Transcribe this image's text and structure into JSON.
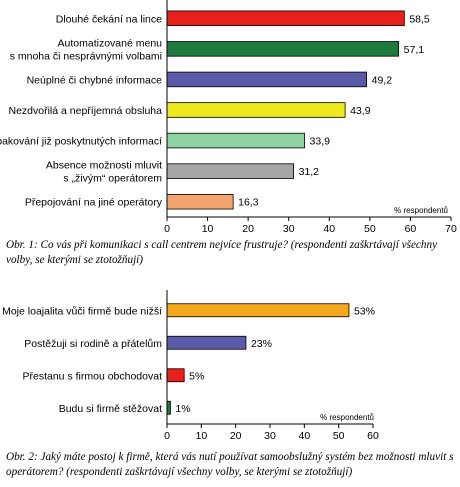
{
  "chart_data": [
    {
      "type": "bar",
      "orientation": "horizontal",
      "categories": [
        "Dlouhé čekání na lince",
        "Automatizované menu s mnoha či nesprávnými volbami",
        "Neúplné či chybné informace",
        "Nezdvořilá a nepříjemná obsluha",
        "Opakování již poskytnutých informací",
        "Absence možnosti mluvit s „živým“ operátorem",
        "Přepojování na jiné operátory"
      ],
      "category_lines": [
        [
          "Dlouhé čekání na lince"
        ],
        [
          "Automatizované menu",
          "s mnoha či nesprávnými volbami"
        ],
        [
          "Neúplné či chybné informace"
        ],
        [
          "Nezdvořilá a nepříjemná obsluha"
        ],
        [
          "Opakování již poskytnutých informací"
        ],
        [
          "Absence možnosti mluvit",
          "s „živým“ operátorem"
        ],
        [
          "Přepojování na jiné operátory"
        ]
      ],
      "values": [
        58.5,
        57.1,
        49.2,
        43.9,
        33.9,
        31.2,
        16.3
      ],
      "value_labels": [
        "58,5",
        "57,1",
        "49,2",
        "43,9",
        "33,9",
        "31,2",
        "16,3"
      ],
      "colors": [
        "#e8201c",
        "#1e7a3c",
        "#5a5aa6",
        "#ece81c",
        "#8fd3a0",
        "#a6a6a6",
        "#f4a46e"
      ],
      "xlim": [
        0,
        70
      ],
      "ticks": [
        0,
        10,
        20,
        30,
        40,
        50,
        60,
        70
      ],
      "unit_label": "% respondentů",
      "xlabel": "",
      "ylabel": "",
      "title": "",
      "grid": false,
      "legend": "none"
    },
    {
      "type": "bar",
      "orientation": "horizontal",
      "categories": [
        "Moje loajalita vůči firmě bude nižší",
        "Postěžuji si rodině a přátelům",
        "Přestanu s firmou obchodovat",
        "Budu si firmě stěžovat"
      ],
      "category_lines": [
        [
          "Moje loajalita vůči firmě bude nižší"
        ],
        [
          "Postěžuji si rodině a přátelům"
        ],
        [
          "Přestanu s firmou obchodovat"
        ],
        [
          "Budu si firmě stěžovat"
        ]
      ],
      "values": [
        53,
        23,
        5,
        1
      ],
      "value_labels": [
        "53%",
        "23%",
        "5%",
        "1%"
      ],
      "colors": [
        "#f5a81c",
        "#5a5aa6",
        "#e8201c",
        "#1e7a3c"
      ],
      "xlim": [
        0,
        60
      ],
      "ticks": [
        0,
        10,
        20,
        30,
        40,
        50,
        60
      ],
      "unit_label": "% respondentů",
      "xlabel": "",
      "ylabel": "",
      "title": "",
      "grid": false,
      "legend": "none"
    }
  ],
  "captions": {
    "fig1": "Obr. 1: Co vás při komunikaci s call centrem nejvíce frustruje? (respondenti zaškrtávají všechny volby, se kterými se ztotožňují)",
    "fig2": "Obr. 2: Jaký máte postoj k firmě, která vás nutí používat samoobslužný systém bez možnosti mluvit s operátorem? (respondenti zaškrtávají všechny volby, se kterými se ztotožňují)"
  }
}
